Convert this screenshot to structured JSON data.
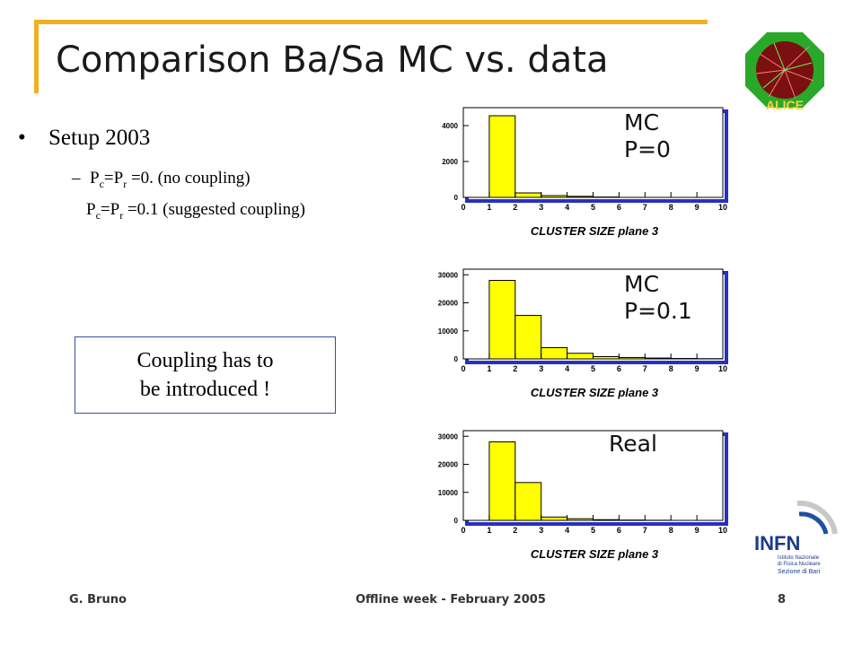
{
  "slide": {
    "title": "Comparison Ba/Sa MC vs. data",
    "bullet": "Setup 2003",
    "sub1": {
      "p": "P",
      "c": "c",
      "eq": "=P",
      "r": "r",
      "rest": " =0. (no coupling)"
    },
    "sub2": {
      "p": "P",
      "c": "c",
      "eq": "=P",
      "r": "r",
      "rest": " =0.1  (suggested coupling)"
    },
    "callout": [
      "Coupling has to",
      "be  introduced !"
    ],
    "footer": {
      "author": "G. Bruno",
      "center": "Offline week - February  2005",
      "page": "8"
    },
    "logos": {
      "alice": "ALICE",
      "infn": "INFN",
      "infn_sub1": "Istituto Nazionale",
      "infn_sub2": "di Fisica Nucleare",
      "infn_sub3": "Sezione di Bari"
    }
  },
  "colors": {
    "accent": "#f0b020",
    "frame": "#2830c0",
    "bar_fill": "#ffff00",
    "text": "#1a1a1a"
  },
  "chart_data": [
    {
      "type": "bar",
      "label": "MC\nP=0",
      "xlabel": "CLUSTER SIZE  plane 3",
      "xlim": [
        0,
        10
      ],
      "xticks": [
        "0",
        "1",
        "2",
        "3",
        "4",
        "5",
        "6",
        "7",
        "8",
        "9",
        "10"
      ],
      "ylim": [
        0,
        5000
      ],
      "yticks": [
        0,
        2000,
        4000
      ],
      "bins": [
        [
          1,
          2
        ],
        [
          2,
          3
        ],
        [
          3,
          4
        ],
        [
          4,
          5
        ],
        [
          5,
          6
        ]
      ],
      "values": [
        4550,
        250,
        100,
        60,
        20
      ]
    },
    {
      "type": "bar",
      "label": "MC\nP=0.1",
      "xlabel": "CLUSTER SIZE  plane 3",
      "xlim": [
        0,
        10
      ],
      "xticks": [
        "0",
        "1",
        "2",
        "3",
        "4",
        "5",
        "6",
        "7",
        "8",
        "9",
        "10"
      ],
      "ylim": [
        0,
        32000
      ],
      "yticks": [
        0,
        10000,
        20000,
        30000
      ],
      "bins": [
        [
          1,
          2
        ],
        [
          2,
          3
        ],
        [
          3,
          4
        ],
        [
          4,
          5
        ],
        [
          5,
          6
        ],
        [
          6,
          7
        ],
        [
          7,
          8
        ],
        [
          8,
          9
        ],
        [
          9,
          10
        ]
      ],
      "values": [
        28000,
        15500,
        4000,
        2000,
        800,
        500,
        300,
        150,
        80
      ]
    },
    {
      "type": "bar",
      "label": "Real",
      "xlabel": "CLUSTER SIZE  plane 3",
      "xlim": [
        0,
        10
      ],
      "xticks": [
        "0",
        "1",
        "2",
        "3",
        "4",
        "5",
        "6",
        "7",
        "8",
        "9",
        "10"
      ],
      "ylim": [
        0,
        32000
      ],
      "yticks": [
        0,
        10000,
        20000,
        30000
      ],
      "bins": [
        [
          1,
          2
        ],
        [
          2,
          3
        ],
        [
          3,
          4
        ],
        [
          4,
          5
        ],
        [
          5,
          6
        ],
        [
          6,
          7
        ],
        [
          7,
          8
        ]
      ],
      "values": [
        28000,
        13500,
        1200,
        600,
        250,
        120,
        50
      ]
    }
  ]
}
